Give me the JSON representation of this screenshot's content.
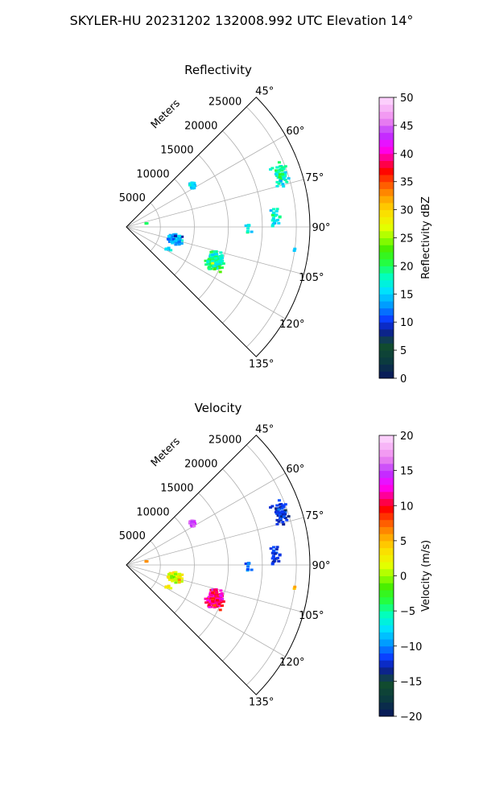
{
  "figure": {
    "suptitle": "SKYLER-HU  20231202  132008.992 UTC Elevation 14°"
  },
  "chart_data": [
    {
      "type": "radar-ppi-sector",
      "title": "Reflectivity",
      "range_label": "Meters",
      "range_ticks": [
        5000,
        10000,
        15000,
        20000,
        25000
      ],
      "range_max": 27000,
      "azimuth_range_deg": [
        45,
        135
      ],
      "azimuth_ticks": [
        {
          "deg": 45,
          "label": "45°"
        },
        {
          "deg": 60,
          "label": "60°"
        },
        {
          "deg": 75,
          "label": "75°"
        },
        {
          "deg": 90,
          "label": "90°"
        },
        {
          "deg": 105,
          "label": "105°"
        },
        {
          "deg": 120,
          "label": "120°"
        },
        {
          "deg": 135,
          "label": "135°"
        }
      ],
      "colorbar": {
        "label": "Reflectivity dBZ",
        "min": 0,
        "max": 50,
        "ticks": [
          {
            "value": 0,
            "label": "0"
          },
          {
            "value": 5,
            "label": "5"
          },
          {
            "value": 10,
            "label": "10"
          },
          {
            "value": 15,
            "label": "15"
          },
          {
            "value": 20,
            "label": "20"
          },
          {
            "value": 25,
            "label": "25"
          },
          {
            "value": 30,
            "label": "30"
          },
          {
            "value": 35,
            "label": "35"
          },
          {
            "value": 40,
            "label": "40"
          },
          {
            "value": 45,
            "label": "45"
          },
          {
            "value": 50,
            "label": "50"
          }
        ],
        "stops": [
          [
            0,
            "#07155e"
          ],
          [
            0.06,
            "#0b3a40"
          ],
          [
            0.12,
            "#124d2c"
          ],
          [
            0.17,
            "#0b1d9a"
          ],
          [
            0.21,
            "#0a3cff"
          ],
          [
            0.26,
            "#0099ff"
          ],
          [
            0.31,
            "#00e0ff"
          ],
          [
            0.36,
            "#00ffc2"
          ],
          [
            0.41,
            "#22ff44"
          ],
          [
            0.46,
            "#44ee00"
          ],
          [
            0.5,
            "#9dff00"
          ],
          [
            0.54,
            "#e8ff00"
          ],
          [
            0.6,
            "#ffd800"
          ],
          [
            0.65,
            "#ff9a00"
          ],
          [
            0.7,
            "#ff4a00"
          ],
          [
            0.74,
            "#ff0000"
          ],
          [
            0.78,
            "#ff0080"
          ],
          [
            0.82,
            "#ff00ff"
          ],
          [
            0.87,
            "#bb33ff"
          ],
          [
            0.92,
            "#ee88ee"
          ],
          [
            1,
            "#ffdcff"
          ]
        ]
      },
      "echo_clusters": [
        {
          "az": 71,
          "range": 24000,
          "spread_az": 4,
          "spread_r": 1000,
          "n": 70,
          "value": 18,
          "jitter": 3
        },
        {
          "az": 86,
          "range": 22000,
          "spread_az": 5,
          "spread_r": 900,
          "n": 25,
          "value": 17,
          "jitter": 3
        },
        {
          "az": 58,
          "range": 11500,
          "spread_az": 3,
          "spread_r": 500,
          "n": 28,
          "value": 16,
          "jitter": 2
        },
        {
          "az": 111,
          "range": 14000,
          "spread_az": 6,
          "spread_r": 1400,
          "n": 190,
          "value": 19,
          "jitter": 4
        },
        {
          "az": 104,
          "range": 7500,
          "spread_az": 6,
          "spread_r": 1200,
          "n": 70,
          "value": 14,
          "jitter": 3
        },
        {
          "az": 118,
          "range": 7000,
          "spread_az": 2,
          "spread_r": 600,
          "n": 8,
          "value": 16,
          "jitter": 2
        },
        {
          "az": 98,
          "range": 25000,
          "spread_az": 1,
          "spread_r": 200,
          "n": 2,
          "value": 15,
          "jitter": 1
        },
        {
          "az": 80,
          "range": 3000,
          "spread_az": 1,
          "spread_r": 200,
          "n": 3,
          "value": 20,
          "jitter": 2
        },
        {
          "az": 90,
          "range": 18000,
          "spread_az": 5,
          "spread_r": 700,
          "n": 8,
          "value": 17,
          "jitter": 2
        }
      ]
    },
    {
      "type": "radar-ppi-sector",
      "title": "Velocity",
      "range_label": "Meters",
      "range_ticks": [
        5000,
        10000,
        15000,
        20000,
        25000
      ],
      "range_max": 27000,
      "azimuth_range_deg": [
        45,
        135
      ],
      "azimuth_ticks": [
        {
          "deg": 45,
          "label": "45°"
        },
        {
          "deg": 60,
          "label": "60°"
        },
        {
          "deg": 75,
          "label": "75°"
        },
        {
          "deg": 90,
          "label": "90°"
        },
        {
          "deg": 105,
          "label": "105°"
        },
        {
          "deg": 120,
          "label": "120°"
        },
        {
          "deg": 135,
          "label": "135°"
        }
      ],
      "colorbar": {
        "label": "Velocity (m/s)",
        "min": -20,
        "max": 20,
        "ticks": [
          {
            "value": -20,
            "label": "−20"
          },
          {
            "value": -15,
            "label": "−15"
          },
          {
            "value": -10,
            "label": "−10"
          },
          {
            "value": -5,
            "label": "−5"
          },
          {
            "value": 0,
            "label": "0"
          },
          {
            "value": 5,
            "label": "5"
          },
          {
            "value": 10,
            "label": "10"
          },
          {
            "value": 15,
            "label": "15"
          },
          {
            "value": 20,
            "label": "20"
          }
        ],
        "stops": [
          [
            0,
            "#07155e"
          ],
          [
            0.06,
            "#0b3a40"
          ],
          [
            0.12,
            "#124d2c"
          ],
          [
            0.17,
            "#0b1d9a"
          ],
          [
            0.21,
            "#0a3cff"
          ],
          [
            0.26,
            "#0099ff"
          ],
          [
            0.31,
            "#00e0ff"
          ],
          [
            0.36,
            "#00ffc2"
          ],
          [
            0.41,
            "#22ff44"
          ],
          [
            0.46,
            "#44ee00"
          ],
          [
            0.5,
            "#9dff00"
          ],
          [
            0.54,
            "#e8ff00"
          ],
          [
            0.6,
            "#ffd800"
          ],
          [
            0.65,
            "#ff9a00"
          ],
          [
            0.7,
            "#ff4a00"
          ],
          [
            0.74,
            "#ff0000"
          ],
          [
            0.78,
            "#ff0080"
          ],
          [
            0.82,
            "#ff00ff"
          ],
          [
            0.87,
            "#bb33ff"
          ],
          [
            0.92,
            "#ee88ee"
          ],
          [
            1,
            "#ffdcff"
          ]
        ]
      },
      "echo_clusters": [
        {
          "az": 71,
          "range": 24000,
          "spread_az": 4,
          "spread_r": 1000,
          "n": 70,
          "value": -12,
          "jitter": 1.5
        },
        {
          "az": 86,
          "range": 22000,
          "spread_az": 5,
          "spread_r": 900,
          "n": 25,
          "value": -12,
          "jitter": 1.5
        },
        {
          "az": 58,
          "range": 11500,
          "spread_az": 3,
          "spread_r": 500,
          "n": 28,
          "value": 15,
          "jitter": 1.5
        },
        {
          "az": 111,
          "range": 14000,
          "spread_az": 6,
          "spread_r": 1400,
          "n": 190,
          "value": 11,
          "jitter": 2.5
        },
        {
          "az": 104,
          "range": 7500,
          "spread_az": 6,
          "spread_r": 1200,
          "n": 70,
          "value": 2,
          "jitter": 3
        },
        {
          "az": 118,
          "range": 7000,
          "spread_az": 2,
          "spread_r": 600,
          "n": 8,
          "value": 4,
          "jitter": 2
        },
        {
          "az": 98,
          "range": 25000,
          "spread_az": 1,
          "spread_r": 200,
          "n": 2,
          "value": 5,
          "jitter": 1
        },
        {
          "az": 80,
          "range": 3000,
          "spread_az": 1,
          "spread_r": 200,
          "n": 3,
          "value": 6,
          "jitter": 2
        },
        {
          "az": 90,
          "range": 18000,
          "spread_az": 5,
          "spread_r": 700,
          "n": 8,
          "value": -11,
          "jitter": 1.5
        }
      ]
    }
  ]
}
